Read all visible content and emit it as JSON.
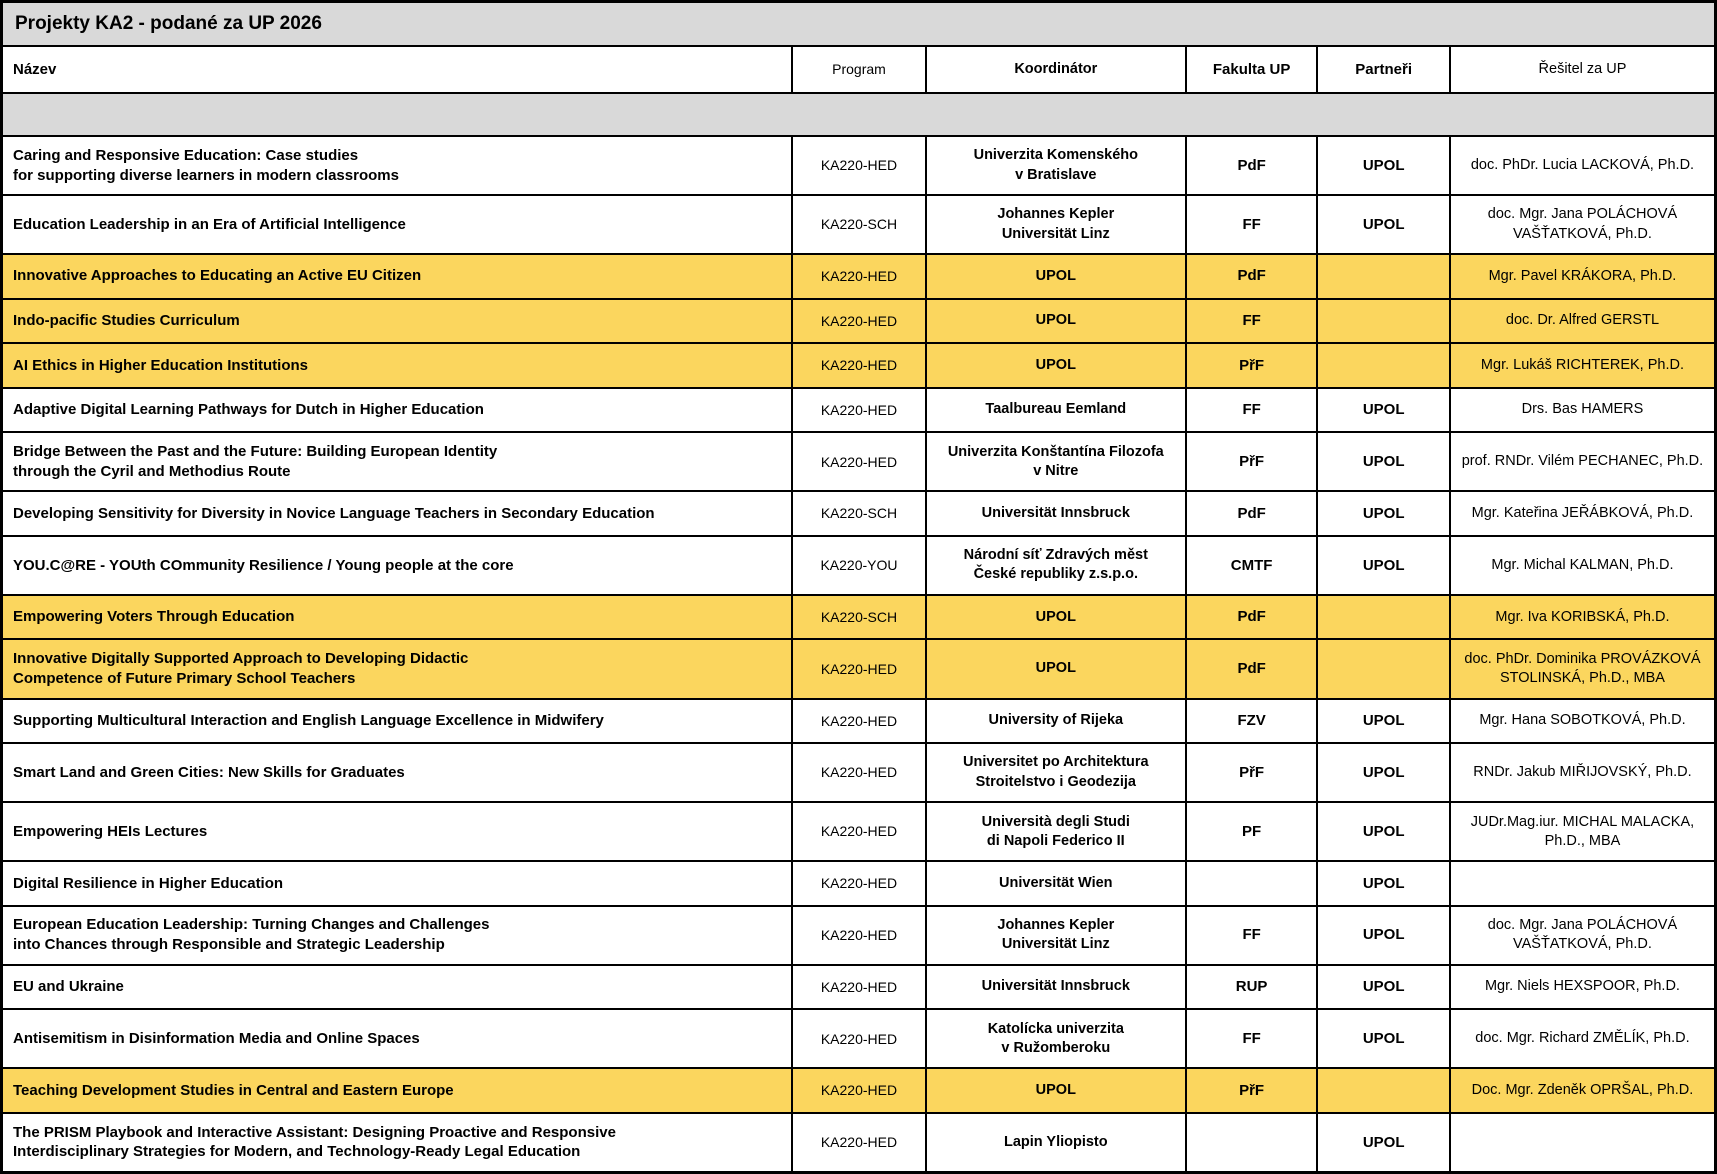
{
  "title": "Projekty KA2 - podané za UP 2026",
  "columns": {
    "nazev": "Název",
    "program": "Program",
    "koordinator": "Koordinátor",
    "fakulta_up": "Fakulta UP",
    "partneri": "Partneři",
    "resitel_za_up": "Řešitel za UP"
  },
  "colors": {
    "highlight": "#FBD65E",
    "band_gray": "#D9D9D9",
    "border": "#000000"
  },
  "rows": [
    {
      "nazev": "Caring and Responsive Education: Case studies\nfor supporting diverse learners in modern classrooms",
      "program": "KA220-HED",
      "koordinator": "Univerzita Komenského\nv Bratislave",
      "fakulta_up": "PdF",
      "partneri": "UPOL",
      "resitel_za_up": "doc. PhDr. Lucia LACKOVÁ, Ph.D.",
      "highlighted": false
    },
    {
      "nazev": "Education Leadership in an Era of Artificial Intelligence",
      "program": "KA220-SCH",
      "koordinator": "Johannes Kepler\nUniversität Linz",
      "fakulta_up": "FF",
      "partneri": "UPOL",
      "resitel_za_up": "doc. Mgr. Jana POLÁCHOVÁ\nVAŠŤATKOVÁ, Ph.D.",
      "highlighted": false
    },
    {
      "nazev": "Innovative Approaches to Educating an Active EU Citizen",
      "program": "KA220-HED",
      "koordinator": "UPOL",
      "fakulta_up": "PdF",
      "partneri": "",
      "resitel_za_up": "Mgr. Pavel KRÁKORA, Ph.D.",
      "highlighted": true
    },
    {
      "nazev": "Indo-pacific Studies Curriculum",
      "program": "KA220-HED",
      "koordinator": "UPOL",
      "fakulta_up": "FF",
      "partneri": "",
      "resitel_za_up": "doc. Dr. Alfred GERSTL",
      "highlighted": true
    },
    {
      "nazev": "AI Ethics in Higher Education Institutions",
      "program": "KA220-HED",
      "koordinator": "UPOL",
      "fakulta_up": "PřF",
      "partneri": "",
      "resitel_za_up": "Mgr. Lukáš RICHTEREK, Ph.D.",
      "highlighted": true
    },
    {
      "nazev": "Adaptive Digital Learning Pathways for Dutch in Higher Education",
      "program": "KA220-HED",
      "koordinator": "Taalbureau Eemland",
      "fakulta_up": "FF",
      "partneri": "UPOL",
      "resitel_za_up": "Drs. Bas HAMERS",
      "highlighted": false
    },
    {
      "nazev": "Bridge Between the Past and the Future: Building European Identity\nthrough the Cyril and Methodius Route",
      "program": "KA220-HED",
      "koordinator": "Univerzita Konštantína Filozofa\nv Nitre",
      "fakulta_up": "PřF",
      "partneri": "UPOL",
      "resitel_za_up": "prof. RNDr. Vilém PECHANEC, Ph.D.",
      "highlighted": false
    },
    {
      "nazev": "Developing Sensitivity for Diversity in Novice Language Teachers in Secondary Education",
      "program": "KA220-SCH",
      "koordinator": "Universität Innsbruck",
      "fakulta_up": "PdF",
      "partneri": "UPOL",
      "resitel_za_up": "Mgr. Kateřina JEŘÁBKOVÁ, Ph.D.",
      "highlighted": false
    },
    {
      "nazev": "YOU.C@RE - YOUth COmmunity Resilience / Young people at the core",
      "program": "KA220-YOU",
      "koordinator": "Národní síť Zdravých měst\nČeské republiky z.s.p.o.",
      "fakulta_up": "CMTF",
      "partneri": "UPOL",
      "resitel_za_up": "Mgr. Michal KALMAN, Ph.D.",
      "highlighted": false
    },
    {
      "nazev": "Empowering Voters Through Education",
      "program": "KA220-SCH",
      "koordinator": "UPOL",
      "fakulta_up": "PdF",
      "partneri": "",
      "resitel_za_up": "Mgr. Iva KORIBSKÁ, Ph.D.",
      "highlighted": true
    },
    {
      "nazev": "Innovative Digitally Supported Approach to Developing Didactic\nCompetence of Future Primary School Teachers",
      "program": "KA220-HED",
      "koordinator": "UPOL",
      "fakulta_up": "PdF",
      "partneri": "",
      "resitel_za_up": "doc. PhDr. Dominika PROVÁZKOVÁ\nSTOLINSKÁ, Ph.D., MBA",
      "highlighted": true
    },
    {
      "nazev": "Supporting Multicultural Interaction and English Language Excellence in Midwifery",
      "program": "KA220-HED",
      "koordinator": "University of Rijeka",
      "fakulta_up": "FZV",
      "partneri": "UPOL",
      "resitel_za_up": "Mgr. Hana SOBOTKOVÁ, Ph.D.",
      "highlighted": false
    },
    {
      "nazev": "Smart Land and Green Cities: New Skills for Graduates",
      "program": "KA220-HED",
      "koordinator": "Universitet po Architektura\nStroitelstvo i Geodezija",
      "fakulta_up": "PřF",
      "partneri": "UPOL",
      "resitel_za_up": "RNDr. Jakub MIŘIJOVSKÝ, Ph.D.",
      "highlighted": false
    },
    {
      "nazev": "Empowering HEIs Lectures",
      "program": "KA220-HED",
      "koordinator": "Università degli Studi\ndi Napoli Federico II",
      "fakulta_up": "PF",
      "partneri": "UPOL",
      "resitel_za_up": "JUDr.Mag.iur. MICHAL MALACKA,\nPh.D., MBA",
      "highlighted": false
    },
    {
      "nazev": "Digital Resilience in Higher Education",
      "program": "KA220-HED",
      "koordinator": "Universität Wien",
      "fakulta_up": "",
      "partneri": "UPOL",
      "resitel_za_up": "",
      "highlighted": false
    },
    {
      "nazev": "European Education Leadership: Turning Changes and Challenges\ninto Chances through Responsible and Strategic Leadership",
      "program": "KA220-HED",
      "koordinator": "Johannes Kepler\nUniversität Linz",
      "fakulta_up": "FF",
      "partneri": "UPOL",
      "resitel_za_up": "doc. Mgr. Jana POLÁCHOVÁ\nVAŠŤATKOVÁ, Ph.D.",
      "highlighted": false
    },
    {
      "nazev": "EU and Ukraine",
      "program": "KA220-HED",
      "koordinator": "Universität Innsbruck",
      "fakulta_up": "RUP",
      "partneri": "UPOL",
      "resitel_za_up": "Mgr. Niels HEXSPOOR, Ph.D.",
      "highlighted": false
    },
    {
      "nazev": "Antisemitism in Disinformation Media and Online Spaces",
      "program": "KA220-HED",
      "koordinator": "Katolícka univerzita\nv Ružomberoku",
      "fakulta_up": "FF",
      "partneri": "UPOL",
      "resitel_za_up": "doc. Mgr. Richard ZMĚLÍK, Ph.D.",
      "highlighted": false
    },
    {
      "nazev": "Teaching Development Studies in Central and Eastern Europe",
      "program": "KA220-HED",
      "koordinator": "UPOL",
      "fakulta_up": "PřF",
      "partneri": "",
      "resitel_za_up": "Doc. Mgr. Zdeněk OPRŠAL, Ph.D.",
      "highlighted": true
    },
    {
      "nazev": "The PRISM Playbook and Interactive Assistant: Designing Proactive and Responsive\nInterdisciplinary Strategies for Modern, and Technology-Ready Legal Education",
      "program": "KA220-HED",
      "koordinator": "Lapin Yliopisto",
      "fakulta_up": "",
      "partneri": "UPOL",
      "resitel_za_up": "",
      "highlighted": false
    }
  ]
}
